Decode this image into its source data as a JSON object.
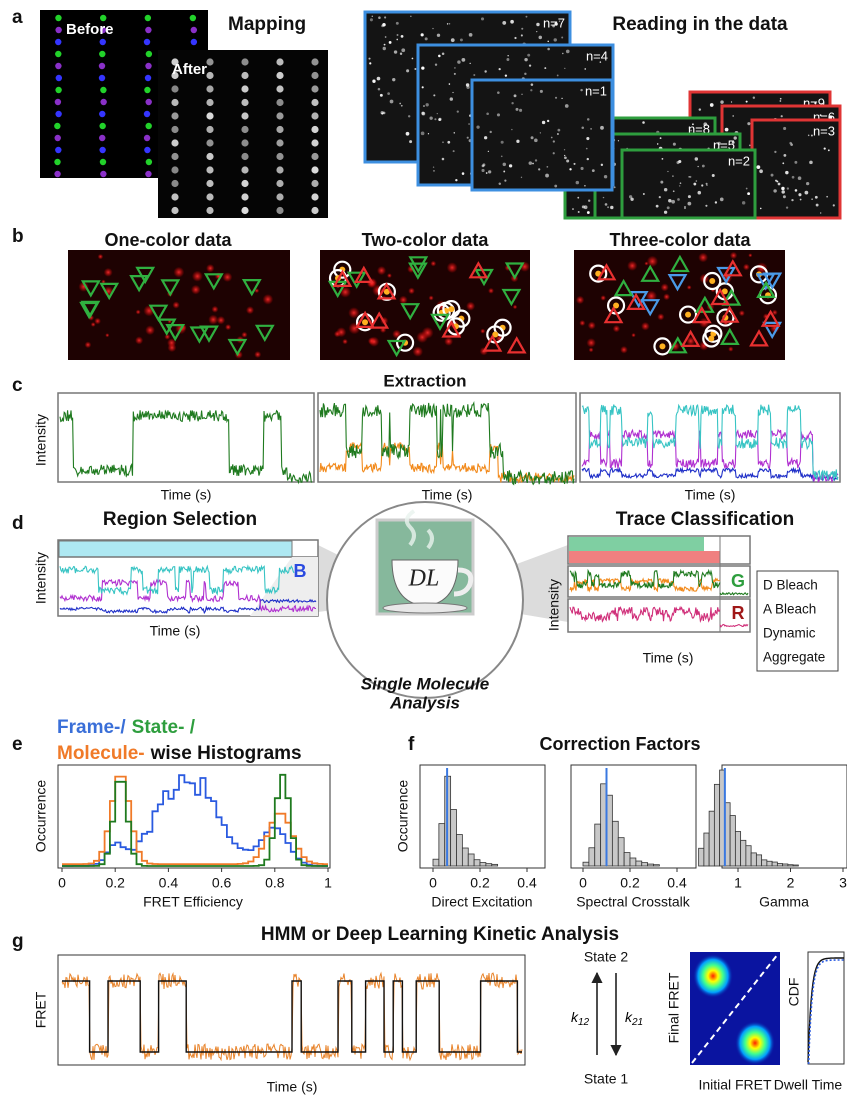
{
  "a": {
    "label": "a",
    "mapping_title": "Mapping",
    "before": "Before",
    "after": "After",
    "reading_title": "Reading in the data",
    "frames": [
      "n=7",
      "n=4",
      "n=1",
      "n=8",
      "n=5",
      "n=2",
      "n=9",
      "n=6",
      "n=3"
    ]
  },
  "b": {
    "label": "b",
    "titles": [
      "One-color data",
      "Two-color data",
      "Three-color data"
    ]
  },
  "c": {
    "label": "c",
    "title": "Extraction",
    "y_label": "Intensity",
    "x_labels": [
      "Time (s)",
      "Time (s)",
      "Time (s)"
    ]
  },
  "d": {
    "label": "d",
    "region": {
      "title": "Region Selection",
      "y_label": "Intensity",
      "x_label": "Time (s)",
      "marker": "B"
    },
    "center": {
      "logo": "DL",
      "caption": [
        "Single Molecule",
        "Analysis"
      ]
    },
    "classification": {
      "title": "Trace Classification",
      "y_label": "Intensity",
      "x_label": "Time (s)",
      "markers": [
        "G",
        "R"
      ],
      "classes": [
        "D Bleach",
        "A Bleach",
        "Dynamic",
        "Aggregate"
      ]
    }
  },
  "e": {
    "label": "e",
    "title": [
      "Frame-/",
      "State- /",
      "Molecule-",
      "wise Histograms"
    ],
    "y_label": "Occurrence",
    "x_label": "FRET Efficiency",
    "xticks": [
      "0",
      "0.2",
      "0.4",
      "0.6",
      "0.8",
      "1"
    ]
  },
  "f": {
    "label": "f",
    "title": "Correction Factors",
    "y_label": "Occurrence",
    "plots": [
      {
        "x_label": "Direct Excitation",
        "xticks": [
          "0",
          "0.2",
          "0.4"
        ]
      },
      {
        "x_label": "Spectral Crosstalk",
        "xticks": [
          "0",
          "0.2",
          "0.4"
        ]
      },
      {
        "x_label": "Gamma",
        "xticks": [
          "1",
          "2",
          "3"
        ]
      }
    ]
  },
  "g": {
    "label": "g",
    "title": "HMM or Deep Learning Kinetic Analysis",
    "trace": {
      "y_label": "FRET",
      "x_label": "Time (s)"
    },
    "scheme": {
      "upper": "State 2",
      "lower": "State 1",
      "forward": [
        "k",
        "12"
      ],
      "backward": [
        "k",
        "21"
      ]
    },
    "tdp": {
      "y_label": "Final FRET",
      "x_label": "Initial FRET"
    },
    "cdf": {
      "y_label": "CDF",
      "x_label": "Dwell Time"
    }
  }
}
